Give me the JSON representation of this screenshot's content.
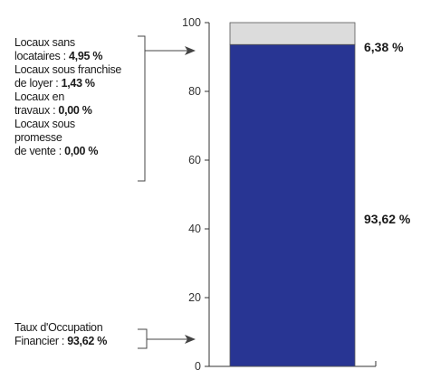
{
  "chart_data": {
    "type": "bar",
    "stacked": true,
    "title": "",
    "xlabel": "",
    "ylabel": "",
    "ylim": [
      0,
      100
    ],
    "yticks": [
      0,
      20,
      40,
      60,
      80,
      100
    ],
    "grid": false,
    "categories": [
      ""
    ],
    "series": [
      {
        "values": [
          93.62
        ],
        "color": "#283593"
      },
      {
        "values": [
          6.38
        ],
        "color": "#dcdcdc"
      }
    ],
    "data_labels": {
      "top": "6,38 %",
      "bottom": "93,62 %"
    },
    "annotations": {
      "upper_group": [
        {
          "line1": "Locaux sans",
          "line2_prefix": "locataires : ",
          "value": "4,95 %"
        },
        {
          "line1": "Locaux sous franchise",
          "line2_prefix": "de loyer : ",
          "value": "1,43 %"
        },
        {
          "line1": "Locaux en",
          "line2_prefix": "travaux : ",
          "value": "0,00 %"
        },
        {
          "line1": "Locaux sous",
          "line1b": "promesse",
          "line2_prefix": "de vente : ",
          "value": "0,00 %"
        }
      ],
      "lower_group": {
        "line1": "Taux d'Occupation",
        "line2_prefix": "Financier : ",
        "value": "93,62 %"
      }
    }
  }
}
